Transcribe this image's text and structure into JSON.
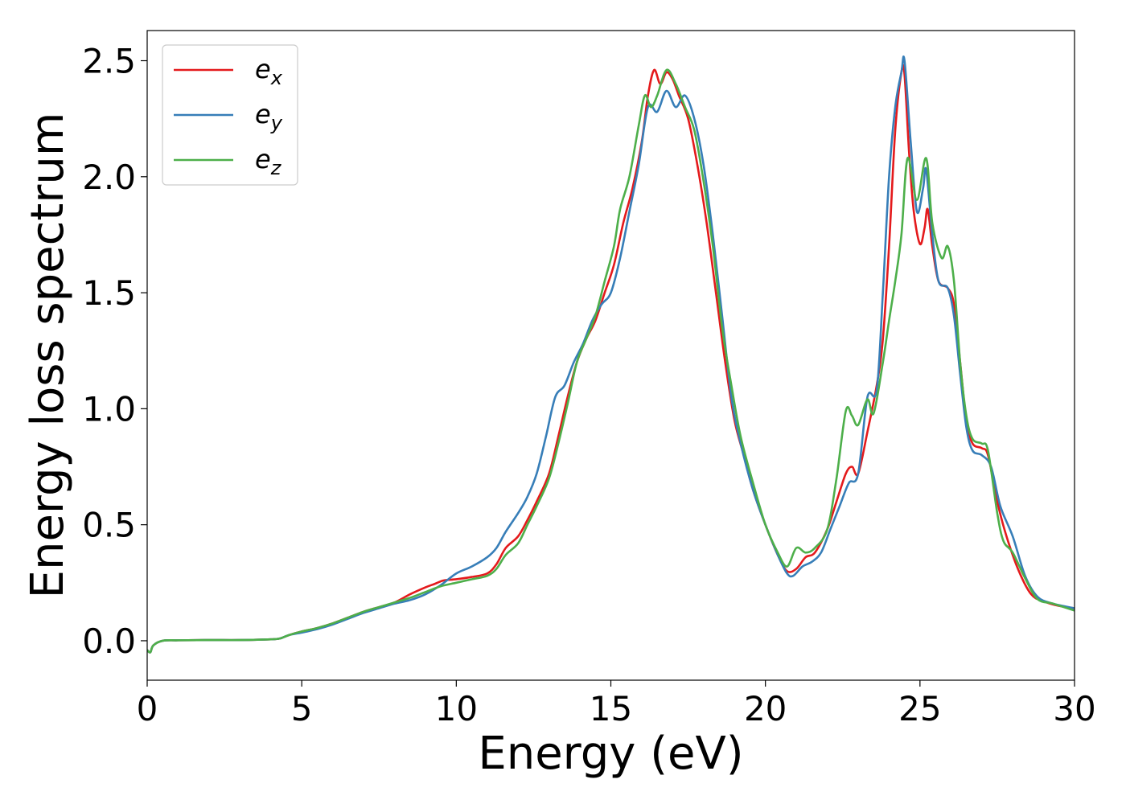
{
  "chart_data": {
    "type": "line",
    "title": "",
    "xlabel": "Energy (eV)",
    "ylabel": "Energy loss spectrum",
    "xlim": [
      0,
      30
    ],
    "ylim": [
      -0.17,
      2.63
    ],
    "xticks": [
      0,
      5,
      10,
      15,
      20,
      25,
      30
    ],
    "xtick_labels": [
      "0",
      "5",
      "10",
      "15",
      "20",
      "25",
      "30"
    ],
    "yticks": [
      0.0,
      0.5,
      1.0,
      1.5,
      2.0,
      2.5
    ],
    "ytick_labels": [
      "0.0",
      "0.5",
      "1.0",
      "1.5",
      "2.0",
      "2.5"
    ],
    "grid": false,
    "legend_position": "top-left",
    "series": [
      {
        "name": "e_x",
        "legend_base": "e",
        "legend_sub": "x",
        "color": "#e41a1c",
        "points": [
          [
            0,
            -0.04
          ],
          [
            0.1,
            -0.05
          ],
          [
            0.2,
            -0.02
          ],
          [
            0.5,
            0.0
          ],
          [
            1,
            0.002
          ],
          [
            2,
            0.003
          ],
          [
            3,
            0.003
          ],
          [
            4,
            0.006
          ],
          [
            4.3,
            0.01
          ],
          [
            4.6,
            0.025
          ],
          [
            5,
            0.04
          ],
          [
            5.5,
            0.055
          ],
          [
            6,
            0.075
          ],
          [
            6.5,
            0.1
          ],
          [
            7,
            0.125
          ],
          [
            7.5,
            0.145
          ],
          [
            8,
            0.165
          ],
          [
            8.5,
            0.2
          ],
          [
            9,
            0.23
          ],
          [
            9.3,
            0.245
          ],
          [
            9.6,
            0.26
          ],
          [
            10,
            0.265
          ],
          [
            10.5,
            0.275
          ],
          [
            11,
            0.29
          ],
          [
            11.3,
            0.33
          ],
          [
            11.6,
            0.4
          ],
          [
            12,
            0.45
          ],
          [
            12.3,
            0.52
          ],
          [
            12.6,
            0.6
          ],
          [
            13,
            0.72
          ],
          [
            13.3,
            0.88
          ],
          [
            13.6,
            1.05
          ],
          [
            13.9,
            1.2
          ],
          [
            14.2,
            1.3
          ],
          [
            14.5,
            1.38
          ],
          [
            14.8,
            1.5
          ],
          [
            15.1,
            1.62
          ],
          [
            15.4,
            1.8
          ],
          [
            15.7,
            1.95
          ],
          [
            16,
            2.15
          ],
          [
            16.2,
            2.35
          ],
          [
            16.4,
            2.46
          ],
          [
            16.6,
            2.4
          ],
          [
            16.8,
            2.45
          ],
          [
            17,
            2.42
          ],
          [
            17.2,
            2.35
          ],
          [
            17.5,
            2.25
          ],
          [
            17.8,
            2.05
          ],
          [
            18.1,
            1.8
          ],
          [
            18.4,
            1.5
          ],
          [
            18.7,
            1.2
          ],
          [
            19,
            0.95
          ],
          [
            19.3,
            0.8
          ],
          [
            19.6,
            0.65
          ],
          [
            20,
            0.5
          ],
          [
            20.4,
            0.37
          ],
          [
            20.7,
            0.3
          ],
          [
            21,
            0.31
          ],
          [
            21.3,
            0.36
          ],
          [
            21.6,
            0.38
          ],
          [
            22,
            0.48
          ],
          [
            22.3,
            0.6
          ],
          [
            22.6,
            0.72
          ],
          [
            22.8,
            0.75
          ],
          [
            23,
            0.72
          ],
          [
            23.3,
            0.9
          ],
          [
            23.6,
            1.1
          ],
          [
            23.8,
            1.3
          ],
          [
            24,
            1.7
          ],
          [
            24.2,
            2.2
          ],
          [
            24.4,
            2.45
          ],
          [
            24.5,
            2.44
          ],
          [
            24.65,
            2.1
          ],
          [
            24.8,
            1.85
          ],
          [
            25,
            1.71
          ],
          [
            25.15,
            1.78
          ],
          [
            25.25,
            1.86
          ],
          [
            25.4,
            1.7
          ],
          [
            25.6,
            1.55
          ],
          [
            25.9,
            1.52
          ],
          [
            26.1,
            1.45
          ],
          [
            26.3,
            1.2
          ],
          [
            26.5,
            0.95
          ],
          [
            26.7,
            0.85
          ],
          [
            27,
            0.83
          ],
          [
            27.2,
            0.8
          ],
          [
            27.5,
            0.6
          ],
          [
            27.8,
            0.45
          ],
          [
            28.2,
            0.3
          ],
          [
            28.6,
            0.2
          ],
          [
            29,
            0.17
          ],
          [
            29.5,
            0.15
          ],
          [
            30,
            0.14
          ]
        ]
      },
      {
        "name": "e_y",
        "legend_base": "e",
        "legend_sub": "y",
        "color": "#377eb8",
        "points": [
          [
            0,
            -0.04
          ],
          [
            0.1,
            -0.05
          ],
          [
            0.2,
            -0.02
          ],
          [
            0.5,
            0.0
          ],
          [
            1,
            0.002
          ],
          [
            2,
            0.003
          ],
          [
            3,
            0.003
          ],
          [
            4,
            0.006
          ],
          [
            4.3,
            0.01
          ],
          [
            4.6,
            0.025
          ],
          [
            5,
            0.035
          ],
          [
            5.5,
            0.05
          ],
          [
            6,
            0.07
          ],
          [
            6.5,
            0.095
          ],
          [
            7,
            0.12
          ],
          [
            7.5,
            0.14
          ],
          [
            8,
            0.16
          ],
          [
            8.5,
            0.175
          ],
          [
            9,
            0.2
          ],
          [
            9.5,
            0.24
          ],
          [
            10,
            0.29
          ],
          [
            10.5,
            0.32
          ],
          [
            11,
            0.36
          ],
          [
            11.3,
            0.4
          ],
          [
            11.6,
            0.47
          ],
          [
            12,
            0.55
          ],
          [
            12.3,
            0.62
          ],
          [
            12.6,
            0.72
          ],
          [
            12.9,
            0.88
          ],
          [
            13.2,
            1.05
          ],
          [
            13.5,
            1.1
          ],
          [
            13.8,
            1.2
          ],
          [
            14.1,
            1.28
          ],
          [
            14.4,
            1.38
          ],
          [
            14.7,
            1.45
          ],
          [
            15,
            1.5
          ],
          [
            15.3,
            1.65
          ],
          [
            15.6,
            1.85
          ],
          [
            15.9,
            2.05
          ],
          [
            16.2,
            2.3
          ],
          [
            16.5,
            2.28
          ],
          [
            16.8,
            2.37
          ],
          [
            17.1,
            2.3
          ],
          [
            17.4,
            2.35
          ],
          [
            17.7,
            2.25
          ],
          [
            18,
            2.05
          ],
          [
            18.3,
            1.75
          ],
          [
            18.6,
            1.4
          ],
          [
            18.9,
            1.05
          ],
          [
            19.2,
            0.85
          ],
          [
            19.6,
            0.65
          ],
          [
            20,
            0.5
          ],
          [
            20.4,
            0.37
          ],
          [
            20.7,
            0.29
          ],
          [
            20.9,
            0.28
          ],
          [
            21.2,
            0.32
          ],
          [
            21.5,
            0.34
          ],
          [
            21.8,
            0.38
          ],
          [
            22.1,
            0.48
          ],
          [
            22.4,
            0.58
          ],
          [
            22.7,
            0.68
          ],
          [
            23,
            0.72
          ],
          [
            23.3,
            1.05
          ],
          [
            23.6,
            1.08
          ],
          [
            23.8,
            1.5
          ],
          [
            24,
            2.0
          ],
          [
            24.2,
            2.3
          ],
          [
            24.4,
            2.45
          ],
          [
            24.5,
            2.5
          ],
          [
            24.7,
            2.15
          ],
          [
            24.9,
            1.85
          ],
          [
            25.1,
            1.95
          ],
          [
            25.2,
            2.03
          ],
          [
            25.4,
            1.75
          ],
          [
            25.6,
            1.55
          ],
          [
            25.9,
            1.52
          ],
          [
            26.1,
            1.4
          ],
          [
            26.3,
            1.15
          ],
          [
            26.5,
            0.92
          ],
          [
            26.7,
            0.82
          ],
          [
            27,
            0.8
          ],
          [
            27.3,
            0.75
          ],
          [
            27.6,
            0.58
          ],
          [
            28,
            0.45
          ],
          [
            28.4,
            0.28
          ],
          [
            28.8,
            0.19
          ],
          [
            29.3,
            0.16
          ],
          [
            30,
            0.14
          ]
        ]
      },
      {
        "name": "e_z",
        "legend_base": "e",
        "legend_sub": "z",
        "color": "#4daf4a",
        "points": [
          [
            0,
            -0.04
          ],
          [
            0.1,
            -0.05
          ],
          [
            0.2,
            -0.02
          ],
          [
            0.5,
            0.0
          ],
          [
            1,
            0.002
          ],
          [
            2,
            0.003
          ],
          [
            3,
            0.003
          ],
          [
            4,
            0.006
          ],
          [
            4.3,
            0.01
          ],
          [
            4.6,
            0.025
          ],
          [
            5,
            0.04
          ],
          [
            5.5,
            0.055
          ],
          [
            6,
            0.075
          ],
          [
            6.5,
            0.1
          ],
          [
            7,
            0.125
          ],
          [
            7.5,
            0.145
          ],
          [
            8,
            0.165
          ],
          [
            8.5,
            0.185
          ],
          [
            9,
            0.21
          ],
          [
            9.5,
            0.235
          ],
          [
            10,
            0.25
          ],
          [
            10.5,
            0.265
          ],
          [
            11,
            0.28
          ],
          [
            11.3,
            0.31
          ],
          [
            11.6,
            0.37
          ],
          [
            12,
            0.42
          ],
          [
            12.3,
            0.5
          ],
          [
            12.6,
            0.58
          ],
          [
            13,
            0.7
          ],
          [
            13.3,
            0.85
          ],
          [
            13.6,
            1.02
          ],
          [
            13.9,
            1.2
          ],
          [
            14.2,
            1.3
          ],
          [
            14.5,
            1.4
          ],
          [
            14.8,
            1.55
          ],
          [
            15.1,
            1.7
          ],
          [
            15.3,
            1.86
          ],
          [
            15.6,
            2.0
          ],
          [
            15.9,
            2.22
          ],
          [
            16.1,
            2.35
          ],
          [
            16.3,
            2.3
          ],
          [
            16.5,
            2.35
          ],
          [
            16.8,
            2.46
          ],
          [
            17.1,
            2.4
          ],
          [
            17.4,
            2.3
          ],
          [
            17.7,
            2.2
          ],
          [
            18,
            1.98
          ],
          [
            18.3,
            1.7
          ],
          [
            18.6,
            1.35
          ],
          [
            18.9,
            1.1
          ],
          [
            19.2,
            0.88
          ],
          [
            19.6,
            0.68
          ],
          [
            20,
            0.5
          ],
          [
            20.4,
            0.38
          ],
          [
            20.7,
            0.32
          ],
          [
            21,
            0.4
          ],
          [
            21.3,
            0.38
          ],
          [
            21.6,
            0.4
          ],
          [
            22,
            0.48
          ],
          [
            22.3,
            0.7
          ],
          [
            22.6,
            0.99
          ],
          [
            22.8,
            0.97
          ],
          [
            23,
            0.93
          ],
          [
            23.3,
            1.04
          ],
          [
            23.5,
            0.98
          ],
          [
            23.8,
            1.2
          ],
          [
            24,
            1.38
          ],
          [
            24.2,
            1.55
          ],
          [
            24.4,
            1.75
          ],
          [
            24.6,
            2.08
          ],
          [
            24.9,
            1.9
          ],
          [
            25.2,
            2.08
          ],
          [
            25.4,
            1.8
          ],
          [
            25.7,
            1.65
          ],
          [
            25.9,
            1.7
          ],
          [
            26.1,
            1.55
          ],
          [
            26.3,
            1.2
          ],
          [
            26.5,
            0.97
          ],
          [
            26.7,
            0.87
          ],
          [
            27,
            0.85
          ],
          [
            27.2,
            0.82
          ],
          [
            27.5,
            0.55
          ],
          [
            27.7,
            0.43
          ],
          [
            28,
            0.38
          ],
          [
            28.4,
            0.27
          ],
          [
            28.8,
            0.18
          ],
          [
            29.3,
            0.16
          ],
          [
            30,
            0.13
          ]
        ]
      }
    ]
  }
}
